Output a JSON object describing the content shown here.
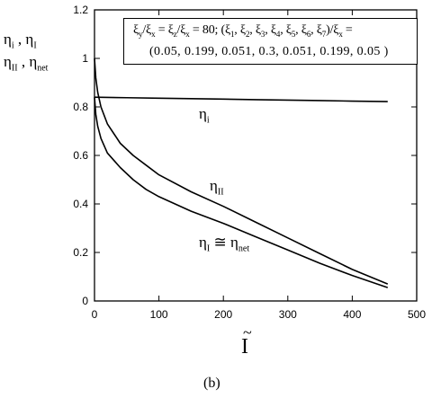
{
  "chart_data": {
    "type": "line",
    "caption": "(b)",
    "y_axis_label_line1": "ηi , ηI",
    "y_axis_label_line2": "ηII , ηnet",
    "x_axis_label": "Ĩ",
    "xlim": [
      0,
      500
    ],
    "ylim": [
      0,
      1.2
    ],
    "x_ticks": [
      0,
      100,
      200,
      300,
      400,
      500
    ],
    "y_ticks": [
      0,
      0.2,
      0.4,
      0.6,
      0.8,
      1,
      1.2
    ],
    "x_tick_labels": [
      "0",
      "100",
      "200",
      "300",
      "400",
      "500"
    ],
    "y_tick_labels": [
      "0",
      "0.2",
      "0.4",
      "0.6",
      "0.8",
      "1",
      "1.2"
    ],
    "grid": false,
    "annotation": {
      "line1": "ξy/ξx = ξz/ξx = 80; (ξ1, ξ2, ξ3, ξ4, ξ5, ξ6, ξ7)/ξx =",
      "line2": "(0.05, 0.199, 0.051, 0.3, 0.051, 0.199, 0.05 )"
    },
    "series": [
      {
        "name": "ηi",
        "x": [
          0,
          50,
          100,
          150,
          200,
          250,
          300,
          350,
          400,
          455
        ],
        "y": [
          0.84,
          0.838,
          0.836,
          0.834,
          0.832,
          0.83,
          0.828,
          0.826,
          0.824,
          0.822
        ]
      },
      {
        "name": "ηII",
        "x": [
          0,
          2,
          5,
          10,
          20,
          40,
          60,
          80,
          100,
          150,
          200,
          250,
          300,
          350,
          400,
          455
        ],
        "y": [
          1.0,
          0.92,
          0.86,
          0.8,
          0.73,
          0.65,
          0.6,
          0.56,
          0.52,
          0.45,
          0.39,
          0.325,
          0.26,
          0.195,
          0.13,
          0.07
        ]
      },
      {
        "name": "ηI ≅ ηnet",
        "x": [
          0,
          2,
          5,
          10,
          20,
          40,
          60,
          80,
          100,
          150,
          200,
          250,
          300,
          350,
          400,
          455
        ],
        "y": [
          0.84,
          0.77,
          0.72,
          0.67,
          0.61,
          0.55,
          0.5,
          0.46,
          0.43,
          0.37,
          0.32,
          0.265,
          0.21,
          0.155,
          0.105,
          0.055
        ]
      }
    ],
    "curve_labels": [
      {
        "series": "ηi",
        "text_main": "η",
        "text_sub": "i"
      },
      {
        "series": "ηII",
        "text_main": "η",
        "text_sub": "II"
      },
      {
        "series": "ηI ≅ ηnet",
        "text_main": "η",
        "text_sub": "I",
        "text_mid": " ≅ η",
        "text_sub2": "net"
      }
    ]
  }
}
